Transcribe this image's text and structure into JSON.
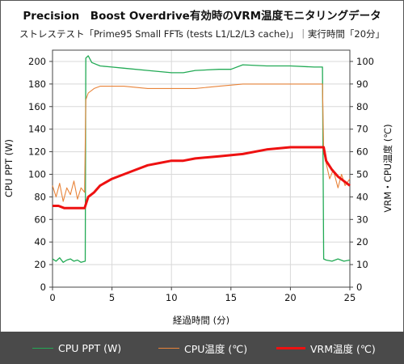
{
  "title": "Precision　Boost Overdrive有効時のVRM温度モニタリングデータ",
  "subtitle": "ストレステスト「Prime95 Small FFTs (tests L1/L2/L3 cache)」｜実行時間「20分」",
  "legend": {
    "ppt": "CPU PPT (W)",
    "cpu_temp": "CPU温度 (℃)",
    "vrm_temp": "VRM温度 (℃)"
  },
  "chart_data": {
    "type": "line",
    "xlabel": "経過時間 (分)",
    "ylabel_left": "CPU PPT (W)",
    "ylabel_right": "VRM・CPU温度 (℃)",
    "xlim": [
      0,
      25
    ],
    "ylim_left": [
      0,
      210
    ],
    "ylim_right": [
      0,
      105
    ],
    "x_ticks": [
      0,
      5,
      10,
      15,
      20,
      25
    ],
    "y_ticks_left": [
      0,
      20,
      40,
      60,
      80,
      100,
      120,
      140,
      160,
      180,
      200
    ],
    "y_ticks_right": [
      0,
      10,
      20,
      30,
      40,
      50,
      60,
      70,
      80,
      90,
      100
    ],
    "grid": true,
    "legend_position": "bottom",
    "series": [
      {
        "name": "CPU PPT (W)",
        "axis": "left",
        "color": "#22aa55",
        "x": [
          0,
          0.3,
          0.6,
          0.9,
          1.2,
          1.5,
          1.8,
          2.1,
          2.4,
          2.75,
          2.8,
          3.0,
          3.3,
          4.0,
          5.0,
          6.0,
          8.0,
          10.0,
          11.0,
          12.0,
          14.0,
          15.0,
          16.0,
          18.0,
          20.0,
          22.0,
          22.7,
          22.8,
          23.0,
          23.5,
          24.0,
          24.5,
          25.0
        ],
        "values": [
          25,
          23,
          26,
          22,
          24,
          25,
          23,
          24,
          22,
          23,
          203,
          205,
          199,
          196,
          195,
          194,
          192,
          190,
          190,
          192,
          193,
          193,
          197,
          196,
          196,
          195,
          195,
          25,
          24,
          23,
          25,
          23,
          24
        ]
      },
      {
        "name": "CPU温度 (℃)",
        "axis": "right",
        "color": "#e8843a",
        "x": [
          0,
          0.3,
          0.6,
          0.9,
          1.2,
          1.5,
          1.8,
          2.1,
          2.4,
          2.7,
          2.8,
          3.0,
          3.5,
          4.0,
          6.0,
          8.0,
          10.0,
          12.0,
          14.0,
          16.0,
          18.0,
          20.0,
          22.0,
          22.7,
          22.8,
          23.0,
          23.3,
          23.6,
          24.0,
          24.3,
          24.6,
          25.0
        ],
        "values": [
          45,
          40,
          46,
          38,
          44,
          41,
          47,
          39,
          44,
          42,
          83,
          86,
          88,
          89,
          89,
          88,
          88,
          88,
          89,
          90,
          90,
          90,
          90,
          90,
          60,
          55,
          48,
          52,
          44,
          50,
          45,
          48
        ]
      },
      {
        "name": "VRM温度 (℃)",
        "axis": "right",
        "color": "#ee1111",
        "x": [
          0,
          0.5,
          1.0,
          2.0,
          2.7,
          3.0,
          3.5,
          4.0,
          5.0,
          6.0,
          7.0,
          8.0,
          9.0,
          10.0,
          11.0,
          12.0,
          14.0,
          16.0,
          18.0,
          20.0,
          22.0,
          22.8,
          23.0,
          23.5,
          24.0,
          24.5,
          25.0
        ],
        "values": [
          36,
          36,
          35,
          35,
          35,
          40,
          42,
          45,
          48,
          50,
          52,
          54,
          55,
          56,
          56,
          57,
          58,
          59,
          61,
          62,
          62,
          62,
          56,
          52,
          49,
          47,
          45
        ]
      }
    ]
  }
}
